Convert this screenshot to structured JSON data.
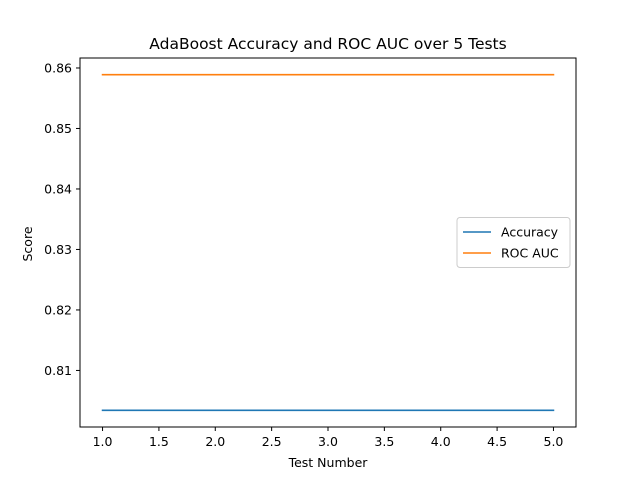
{
  "chart_data": {
    "type": "line",
    "title": "AdaBoost Accuracy and ROC AUC over 5 Tests",
    "xlabel": "Test Number",
    "ylabel": "Score",
    "x": [
      1,
      2,
      3,
      4,
      5
    ],
    "series": [
      {
        "name": "Accuracy",
        "color": "#1f77b4",
        "values": [
          0.8034,
          0.8034,
          0.8034,
          0.8034,
          0.8034
        ]
      },
      {
        "name": "ROC AUC",
        "color": "#ff7f0e",
        "values": [
          0.8589,
          0.8589,
          0.8589,
          0.8589,
          0.8589
        ]
      }
    ],
    "xlim": [
      0.8,
      5.2
    ],
    "ylim": [
      0.80065,
      0.86165
    ],
    "xticks": [
      1.0,
      1.5,
      2.0,
      2.5,
      3.0,
      3.5,
      4.0,
      4.5,
      5.0
    ],
    "xtick_labels": [
      "1.0",
      "1.5",
      "2.0",
      "2.5",
      "3.0",
      "3.5",
      "4.0",
      "4.5",
      "5.0"
    ],
    "yticks": [
      0.81,
      0.82,
      0.83,
      0.84,
      0.85,
      0.86
    ],
    "ytick_labels": [
      "0.81",
      "0.82",
      "0.83",
      "0.84",
      "0.85",
      "0.86"
    ],
    "grid": false,
    "legend_position": "center-right"
  }
}
